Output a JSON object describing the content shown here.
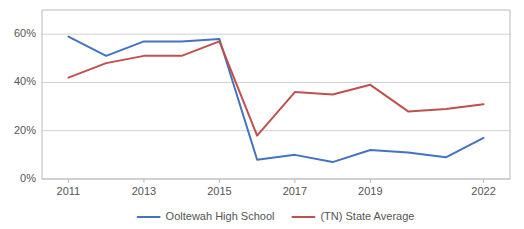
{
  "chart_data": {
    "type": "line",
    "x": [
      2011,
      2012,
      2013,
      2014,
      2015,
      2016,
      2017,
      2018,
      2019,
      2020,
      2021,
      2022
    ],
    "series": [
      {
        "name": "Ooltewah High School",
        "color": "#4472c4",
        "values": [
          0.59,
          0.51,
          0.57,
          0.57,
          0.58,
          0.08,
          0.1,
          0.07,
          0.12,
          0.11,
          0.09,
          0.17
        ]
      },
      {
        "name": "(TN) State Average",
        "color": "#c0504d",
        "values": [
          0.42,
          0.48,
          0.51,
          0.51,
          0.57,
          0.18,
          0.36,
          0.35,
          0.39,
          0.28,
          0.29,
          0.31
        ]
      }
    ],
    "xlim": [
      2010.3,
      2022.7
    ],
    "xticks": [
      2011,
      2013,
      2015,
      2017,
      2019,
      2022
    ],
    "ylim": [
      0.0,
      0.7
    ],
    "yticks": [
      {
        "value": 0.0,
        "label": "0%"
      },
      {
        "value": 0.2,
        "label": "20%"
      },
      {
        "value": 0.4,
        "label": "40%"
      },
      {
        "value": 0.6,
        "label": "60%"
      }
    ],
    "grid": true,
    "legend": "bottom"
  }
}
